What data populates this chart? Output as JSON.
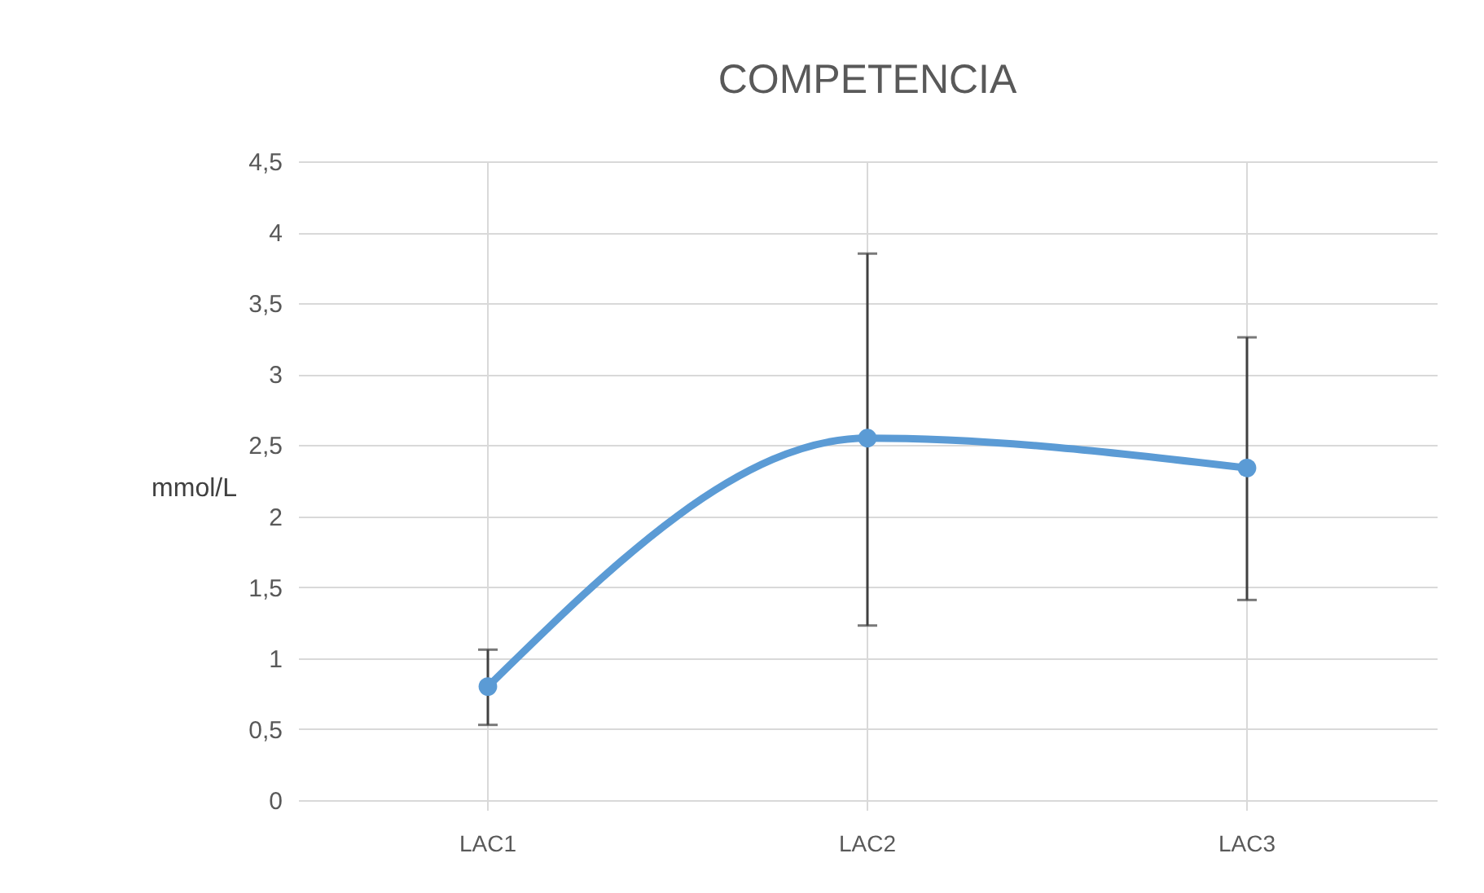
{
  "chart_data": {
    "type": "line",
    "title": "COMPETENCIA",
    "ylabel": "mmol/L",
    "categories": [
      "LAC1",
      "LAC2",
      "LAC3"
    ],
    "series": [
      {
        "color": "#5b9bd5",
        "values": [
          0.8,
          2.55,
          2.34
        ],
        "errors": [
          [
            0.53,
            1.06
          ],
          [
            1.23,
            3.85
          ],
          [
            1.41,
            3.26
          ]
        ]
      }
    ],
    "ylim": [
      0,
      4.5
    ],
    "yticks": [
      {
        "value": 0,
        "label": "0"
      },
      {
        "value": 0.5,
        "label": "0,5"
      },
      {
        "value": 1,
        "label": "1"
      },
      {
        "value": 1.5,
        "label": "1,5"
      },
      {
        "value": 2,
        "label": "2"
      },
      {
        "value": 2.5,
        "label": "2,5"
      },
      {
        "value": 3,
        "label": "3"
      },
      {
        "value": 3.5,
        "label": "3,5"
      },
      {
        "value": 4,
        "label": "4"
      },
      {
        "value": 4.5,
        "label": "4,5"
      }
    ],
    "grid": true,
    "marker": "circle",
    "line_style": "solid"
  }
}
